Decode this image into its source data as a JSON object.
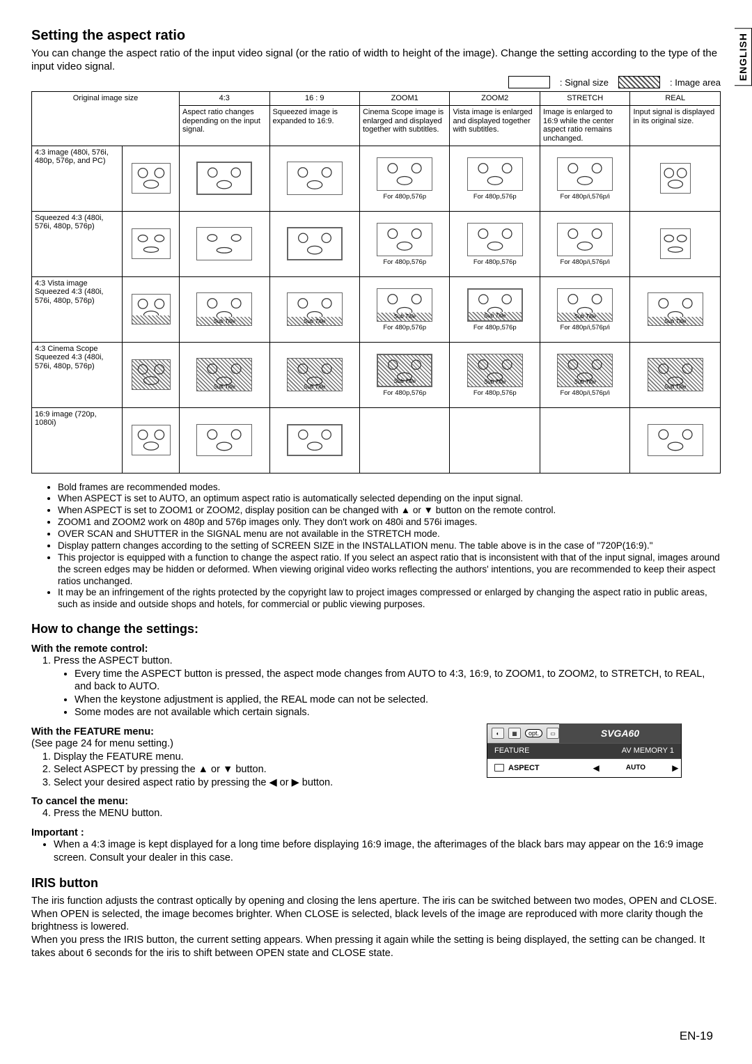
{
  "lang_tab": "ENGLISH",
  "heading1": "Setting the aspect ratio",
  "intro": "You can change the aspect ratio of the input video signal (or the ratio of width to height of the image). Change the setting according to the type of the input video signal.",
  "legend": {
    "signal": ": Signal size",
    "image": ": Image area"
  },
  "table": {
    "col_headers": [
      "4:3",
      "16 : 9",
      "ZOOM1",
      "ZOOM2",
      "STRETCH",
      "REAL"
    ],
    "orig_label": "Original image size",
    "col_desc": [
      "Aspect ratio changes depending on the input signal.",
      "Squeezed image is expanded to 16:9.",
      "Cinema Scope image is enlarged and displayed together with subtitles.",
      "Vista image is enlarged and displayed together with subtitles.",
      "Image is enlarged to 16:9 while the center aspect ratio remains unchanged.",
      "Input signal is displayed in its original size."
    ],
    "rows": [
      {
        "label": "4:3 image (480i, 576i, 480p, 576p, and PC)",
        "notes": [
          "",
          "",
          "For 480p,576p",
          "For 480p,576p",
          "For 480p/i,576p/i",
          ""
        ],
        "hatch": [
          false,
          false,
          false,
          false,
          false,
          false
        ],
        "style": "43"
      },
      {
        "label": "Squeezed 4:3 (480i, 576i, 480p, 576p)",
        "notes": [
          "",
          "",
          "For 480p,576p",
          "For 480p,576p",
          "For 480p/i,576p/i",
          ""
        ],
        "hatch": [
          false,
          false,
          false,
          false,
          false,
          false
        ],
        "style": "sq"
      },
      {
        "label": "4:3 Vista image Squeezed 4:3 (480i, 576i, 480p, 576p)",
        "notes": [
          "",
          "",
          "For 480p,576p",
          "For 480p,576p",
          "For 480p/i,576p/i",
          ""
        ],
        "hatch": [
          true,
          true,
          true,
          true,
          true,
          true
        ],
        "style": "vista"
      },
      {
        "label": "4:3 Cinema Scope Squeezed 4:3 (480i, 576i, 480p, 576p)",
        "notes": [
          "",
          "",
          "For 480p,576p",
          "For 480p,576p",
          "For 480p/i,576p/i",
          ""
        ],
        "hatch": [
          true,
          true,
          true,
          true,
          true,
          true
        ],
        "style": "scope"
      },
      {
        "label": "16:9 image (720p, 1080i)",
        "notes": [
          "",
          "",
          "",
          "",
          "",
          ""
        ],
        "hatch": [
          false,
          false,
          false,
          false,
          false,
          false
        ],
        "style": "169",
        "blanks": [
          false,
          false,
          true,
          true,
          true,
          false
        ]
      }
    ],
    "sub_title_text": "Sub Title"
  },
  "notes_bullets": [
    "Bold frames are recommended modes.",
    "When ASPECT is set to AUTO, an optimum aspect ratio is automatically selected depending on the input signal.",
    "When ASPECT is set to ZOOM1 or ZOOM2, display position can be changed with ▲ or ▼ button on the remote control.",
    "ZOOM1 and ZOOM2 work on 480p and 576p images only. They don't work on 480i and 576i images.",
    "OVER SCAN and SHUTTER in the SIGNAL menu are not available in the STRETCH mode.",
    "Display pattern changes according to the setting of SCREEN SIZE in the INSTALLATION menu. The table above is in the case of \"720P(16:9).\"",
    "This projector is equipped with a function to change the aspect ratio. If you select an aspect ratio that is inconsistent with that of the input signal, images around the screen edges may be hidden or deformed. When viewing original video works reflecting the authors' intentions, you are recommended to keep their aspect ratios unchanged.",
    "It may be an infringement of the rights protected by the copyright law to project images compressed or enlarged by changing the aspect ratio in public areas, such as inside and outside shops and hotels, for commercial or public viewing purposes."
  ],
  "heading2": "How to change the settings:",
  "remote_heading": "With the remote control:",
  "remote_step1": "Press the ASPECT button.",
  "remote_sub": [
    "Every time the ASPECT button is pressed, the aspect mode changes from AUTO to 4:3, 16:9, to ZOOM1, to ZOOM2, to STRETCH, to REAL, and back to AUTO.",
    "When the keystone adjustment is applied, the REAL mode can not be selected.",
    "Some modes are not available which certain signals."
  ],
  "feature_heading": "With the FEATURE menu:",
  "feature_see": "(See page 24 for menu setting.)",
  "feature_steps": [
    "Display the FEATURE menu.",
    "Select ASPECT by pressing the ▲ or ▼ button.",
    "Select your desired aspect ratio by pressing the ◀ or ▶ button."
  ],
  "cancel_heading": "To cancel the menu:",
  "cancel_step": "Press the MENU button.",
  "important_heading": "Important :",
  "important_bullet": "When a 4:3 image is kept displayed for a long time before displaying 16:9 image, the afterimages of the black bars may appear on the 16:9 image screen. Consult your dealer in this case.",
  "iris_heading": "IRIS button",
  "iris_para": "The iris function adjusts the contrast optically by opening and closing the lens aperture. The iris can be switched between two modes, OPEN and CLOSE. When OPEN is selected, the image becomes brighter. When CLOSE is selected, black levels of the image are reproduced with more clarity though the brightness is lowered.\nWhen you press the IRIS button, the current setting appears. When pressing it again while the setting is being displayed, the setting can be changed. It takes about 6 seconds for the iris to shift between OPEN state and CLOSE state.",
  "menu": {
    "opt_label": "opt.",
    "signal_label": "SVGA60",
    "feature_label": "FEATURE",
    "av_label": "AV MEMORY 1",
    "aspect_label": "ASPECT",
    "aspect_value": "AUTO"
  },
  "page_num": "EN-19",
  "colors": {
    "text": "#000000",
    "bg": "#ffffff",
    "menu_dark": "#4a4a4a",
    "menu_darker": "#3a3a3a"
  }
}
